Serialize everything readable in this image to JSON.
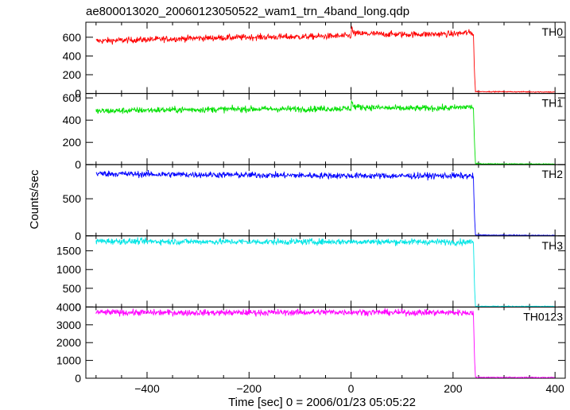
{
  "chart_data": {
    "type": "line",
    "title": "ae800013020_20060123050522_wam1_trn_4band_long.qdp",
    "xlabel": "Time [sec] 0 = 2006/01/23 05:05:22",
    "ylabel": "Counts/sec",
    "xlim": [
      -520,
      420
    ],
    "x_ticks": [
      -400,
      -200,
      0,
      200,
      400
    ],
    "grid": false,
    "series": [
      {
        "name": "TH0",
        "color": "#ff0000",
        "ylim": [
          0,
          760
        ],
        "y_ticks": [
          0,
          200,
          400,
          600
        ],
        "x": [
          -500,
          -400,
          -300,
          -200,
          -100,
          0,
          1,
          5,
          100,
          200,
          230,
          240,
          242,
          244,
          400
        ],
        "y": [
          560,
          575,
          590,
          600,
          605,
          615,
          700,
          640,
          630,
          635,
          650,
          640,
          220,
          20,
          15
        ]
      },
      {
        "name": "TH1",
        "color": "#00e000",
        "ylim": [
          0,
          640
        ],
        "y_ticks": [
          0,
          200,
          400,
          600
        ],
        "x": [
          -500,
          -400,
          -300,
          -200,
          -100,
          0,
          1,
          5,
          100,
          200,
          230,
          240,
          242,
          244,
          400
        ],
        "y": [
          480,
          490,
          495,
          500,
          500,
          505,
          580,
          520,
          505,
          510,
          520,
          515,
          200,
          8,
          5
        ]
      },
      {
        "name": "TH2",
        "color": "#0000ff",
        "ylim": [
          0,
          960
        ],
        "y_ticks": [
          0,
          500
        ],
        "x": [
          -500,
          -400,
          -300,
          -200,
          -100,
          0,
          100,
          200,
          240,
          242,
          244,
          400
        ],
        "y": [
          840,
          830,
          825,
          820,
          815,
          810,
          808,
          810,
          805,
          260,
          10,
          5
        ]
      },
      {
        "name": "TH3",
        "color": "#00e5e5",
        "ylim": [
          0,
          1900
        ],
        "y_ticks": [
          0,
          500,
          1000,
          1500
        ],
        "x": [
          -500,
          -400,
          -300,
          -200,
          -100,
          0,
          100,
          200,
          240,
          242,
          244,
          400
        ],
        "y": [
          1760,
          1750,
          1745,
          1740,
          1740,
          1745,
          1740,
          1735,
          1735,
          550,
          20,
          15
        ]
      },
      {
        "name": "TH0123",
        "color": "#ff00ff",
        "ylim": [
          0,
          4000
        ],
        "y_ticks": [
          0,
          1000,
          2000,
          3000,
          4000
        ],
        "x": [
          -500,
          -400,
          -300,
          -200,
          -100,
          0,
          100,
          200,
          240,
          242,
          244,
          400
        ],
        "y": [
          3700,
          3690,
          3680,
          3690,
          3700,
          3720,
          3690,
          3690,
          3680,
          1100,
          50,
          40
        ]
      }
    ]
  }
}
